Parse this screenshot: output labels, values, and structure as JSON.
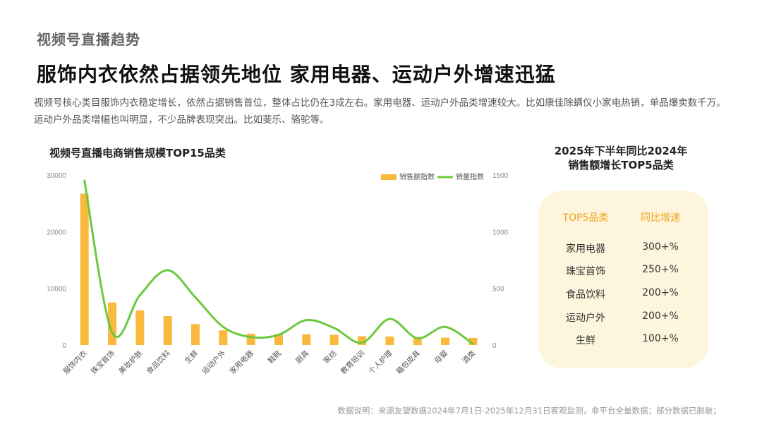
{
  "page": {
    "eyebrow": "视频号直播趋势",
    "headline": "服饰内衣依然占据领先地位 家用电器、运动户外增速迅猛",
    "intro": "视频号核心类目服饰内衣稳定增长，依然占据销售首位，整体占比仍在3成左右。家用电器、运动户外品类增速较大。比如康佳除螨仪小家电热销，单品爆卖数千万。运动户外品类增幅也叫明显，不少品牌表现突出。比如斐乐、骆驼等。",
    "note": "数据说明：来源友望数据2024年7月1日-2025年12月31日客观监测，非平台全量数据；部分数据已脱敏；"
  },
  "chart_data": {
    "type": "bar",
    "title": "视频号直播电商销售规模TOP15品类",
    "categories": [
      "服饰内衣",
      "珠宝首饰",
      "美妆护肤",
      "食品饮料",
      "生鲜",
      "运动户外",
      "家用电器",
      "鞋靴",
      "厨具",
      "家纺",
      "教育培训",
      "个人护理",
      "箱包皮具",
      "母婴",
      "酒类"
    ],
    "series": [
      {
        "name": "销售额指数",
        "kind": "bar",
        "axis": "left",
        "color": "#f9b93c",
        "values": [
          26700,
          7500,
          6100,
          5100,
          3700,
          2600,
          2000,
          1950,
          1900,
          1800,
          1550,
          1500,
          1400,
          1300,
          1250
        ]
      },
      {
        "name": "销量指数",
        "kind": "line",
        "axis": "right",
        "color": "#6cc93e",
        "values": [
          1450,
          110,
          440,
          660,
          420,
          160,
          70,
          90,
          220,
          150,
          20,
          230,
          60,
          160,
          10
        ]
      }
    ],
    "y_left": {
      "min": 0,
      "max": 30000,
      "ticks": [
        0,
        10000,
        20000,
        30000
      ]
    },
    "y_right": {
      "min": 0,
      "max": 1500,
      "ticks": [
        0,
        500,
        1000,
        1500
      ]
    },
    "legend_position": "top-right",
    "grid": false
  },
  "growth": {
    "title_line1": "2025年下半年同比2024年",
    "title_line2": "销售额增长TOP5品类",
    "col_category": "TOP5品类",
    "col_growth": "同比增速",
    "rows": [
      {
        "category": "家用电器",
        "growth": "300+%"
      },
      {
        "category": "珠宝首饰",
        "growth": "250+%"
      },
      {
        "category": "食品饮料",
        "growth": "200+%"
      },
      {
        "category": "运动户外",
        "growth": "200+%"
      },
      {
        "category": "生鲜",
        "growth": "100+%"
      }
    ]
  }
}
